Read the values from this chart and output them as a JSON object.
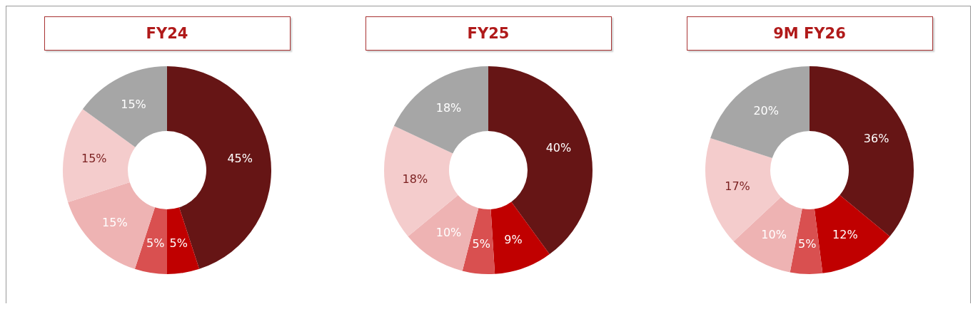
{
  "chart_data": [
    {
      "type": "donut",
      "title": "FY24",
      "categories": [
        null,
        null,
        null,
        null,
        null,
        null
      ],
      "values": [
        45,
        5,
        5,
        15,
        15,
        15
      ],
      "colors": [
        "#661515",
        "#c00000",
        "#d95050",
        "#eeb3b3",
        "#f4cccc",
        "#a6a6a6"
      ],
      "value_labels": [
        "45%",
        "5%",
        "5%",
        "15%",
        "15%",
        "15%"
      ]
    },
    {
      "type": "donut",
      "title": "FY25",
      "categories": [
        null,
        null,
        null,
        null,
        null,
        null
      ],
      "values": [
        40,
        9,
        5,
        10,
        18,
        18
      ],
      "colors": [
        "#661515",
        "#c00000",
        "#d95050",
        "#eeb3b3",
        "#f4cccc",
        "#a6a6a6"
      ],
      "value_labels": [
        "40%",
        "9%",
        "5%",
        "10%",
        "18%",
        "18%"
      ]
    },
    {
      "type": "donut",
      "title": "9M FY26",
      "categories": [
        null,
        null,
        null,
        null,
        null,
        null
      ],
      "values": [
        36,
        12,
        5,
        10,
        17,
        20
      ],
      "colors": [
        "#661515",
        "#c00000",
        "#d95050",
        "#eeb3b3",
        "#f4cccc",
        "#a6a6a6"
      ],
      "value_labels": [
        "36%",
        "12%",
        "5%",
        "10%",
        "17%",
        "20%"
      ]
    }
  ]
}
